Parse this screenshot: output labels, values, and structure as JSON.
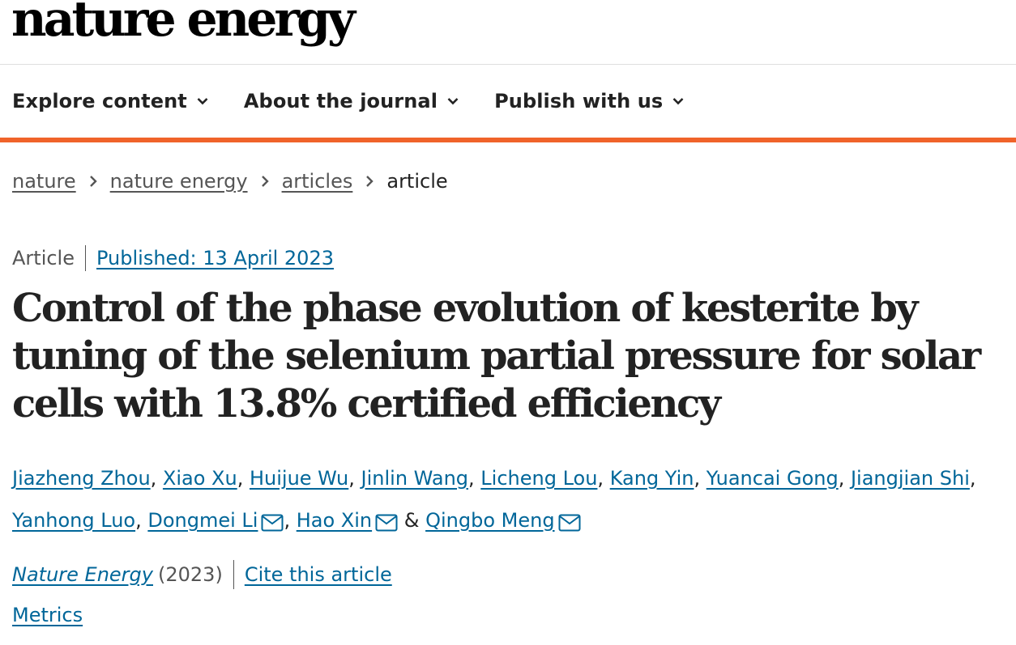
{
  "brand": {
    "logo_text": "nature energy",
    "accent_color": "#f0632a",
    "link_color": "#006699"
  },
  "nav": {
    "items": [
      {
        "label": "Explore content",
        "icon": "chevron-down-icon"
      },
      {
        "label": "About the journal",
        "icon": "chevron-down-icon"
      },
      {
        "label": "Publish with us",
        "icon": "chevron-down-icon"
      }
    ]
  },
  "breadcrumb": {
    "items": [
      "nature",
      "nature energy",
      "articles"
    ],
    "current": "article",
    "separator_icon": "chevron-right-icon"
  },
  "article": {
    "type": "Article",
    "published": "Published: 13 April 2023",
    "title": "Control of the phase evolution of kesterite by tuning of the selenium partial pressure for solar cells with 13.8% certified efficiency",
    "authors": [
      {
        "name": "Jiazheng Zhou",
        "corresponding": false
      },
      {
        "name": "Xiao Xu",
        "corresponding": false
      },
      {
        "name": "Huijue Wu",
        "corresponding": false
      },
      {
        "name": "Jinlin Wang",
        "corresponding": false
      },
      {
        "name": "Licheng Lou",
        "corresponding": false
      },
      {
        "name": "Kang Yin",
        "corresponding": false
      },
      {
        "name": "Yuancai Gong",
        "corresponding": false
      },
      {
        "name": "Jiangjian Shi",
        "corresponding": false
      },
      {
        "name": "Yanhong Luo",
        "corresponding": false
      },
      {
        "name": "Dongmei Li",
        "corresponding": true
      },
      {
        "name": "Hao Xin",
        "corresponding": true
      },
      {
        "name": "Qingbo Meng",
        "corresponding": true
      }
    ],
    "author_separator": ",",
    "author_last_separator": "&",
    "journal": "Nature Energy",
    "year": "(2023)",
    "cite_label": "Cite this article",
    "metrics_label": "Metrics"
  }
}
